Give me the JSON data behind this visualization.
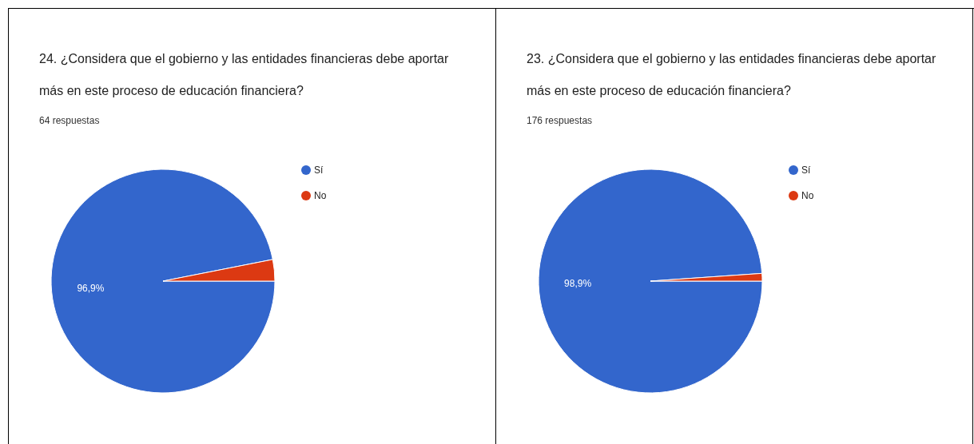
{
  "chart_data": [
    {
      "type": "pie",
      "title": "24. ¿Considera que el gobierno y las entidades financieras debe aportar más en este proceso de educación financiera?",
      "subtitle": "64 respuestas",
      "categories": [
        "Sí",
        "No"
      ],
      "values": [
        96.9,
        3.1
      ],
      "colors": [
        "#3366cc",
        "#dc3912"
      ],
      "value_labels": [
        "96,9%",
        null
      ],
      "legend": "right"
    },
    {
      "type": "pie",
      "title": "23. ¿Considera que el gobierno y las entidades financieras debe aportar más en este proceso de educación financiera?",
      "subtitle": "176 respuestas",
      "categories": [
        "Sí",
        "No"
      ],
      "values": [
        98.9,
        1.1
      ],
      "colors": [
        "#3366cc",
        "#dc3912"
      ],
      "value_labels": [
        "98,9%",
        null
      ],
      "legend": "right"
    }
  ]
}
